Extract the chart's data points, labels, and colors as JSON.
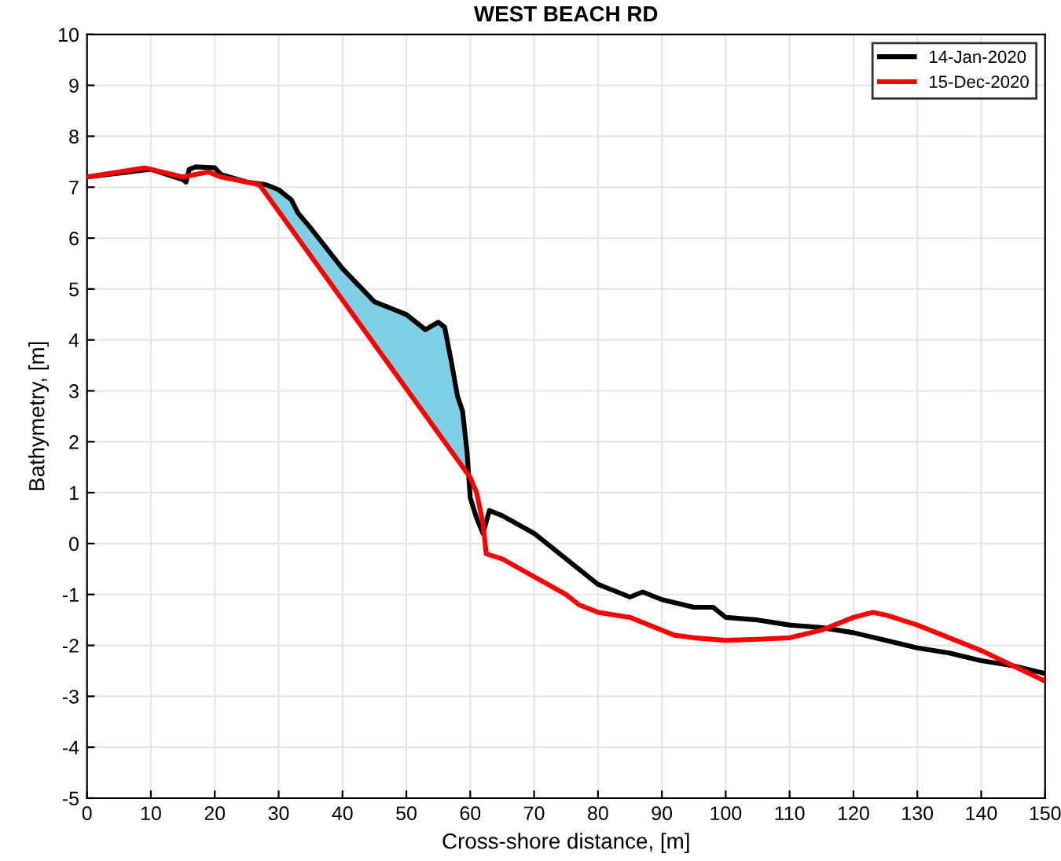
{
  "chart_data": {
    "type": "line",
    "title": "WEST BEACH RD",
    "xlabel": "Cross-shore distance, [m]",
    "ylabel": "Bathymetry, [m]",
    "xlim": [
      0,
      150
    ],
    "xticks": [
      0,
      10,
      20,
      30,
      40,
      50,
      60,
      70,
      80,
      90,
      100,
      110,
      120,
      130,
      140,
      150
    ],
    "ylim": [
      -5,
      10
    ],
    "yticks": [
      -5,
      -4,
      -3,
      -2,
      -1,
      0,
      1,
      2,
      3,
      4,
      5,
      6,
      7,
      8,
      9,
      10
    ],
    "grid": true,
    "legend": "top right",
    "series": [
      {
        "name": "14-Jan-2020",
        "color": "#000000",
        "x": [
          0,
          10,
          15,
          15.5,
          16,
          17,
          20,
          21,
          25,
          28,
          30,
          32,
          33,
          35,
          40,
          45,
          50,
          53,
          55,
          56,
          57,
          58,
          58.8,
          59.5,
          60,
          61,
          62,
          63,
          65,
          70,
          75,
          80,
          85,
          87,
          90,
          95,
          98,
          100,
          105,
          110,
          115,
          120,
          125,
          130,
          135,
          140,
          145,
          150
        ],
        "values": [
          7.2,
          7.35,
          7.15,
          7.1,
          7.35,
          7.4,
          7.38,
          7.25,
          7.1,
          7.05,
          6.95,
          6.75,
          6.5,
          6.2,
          5.4,
          4.75,
          4.5,
          4.2,
          4.35,
          4.25,
          3.6,
          2.9,
          2.6,
          1.8,
          0.9,
          0.5,
          0.2,
          0.65,
          0.55,
          0.2,
          -0.3,
          -0.8,
          -1.05,
          -0.95,
          -1.1,
          -1.25,
          -1.25,
          -1.45,
          -1.5,
          -1.6,
          -1.65,
          -1.75,
          -1.9,
          -2.05,
          -2.15,
          -2.3,
          -2.4,
          -2.55
        ],
        "lower": [
          null,
          null,
          null,
          null,
          null,
          null,
          null,
          null,
          7.1,
          6.88,
          6.53,
          6.18,
          6.0,
          5.66,
          4.79,
          3.91,
          3.04,
          2.52,
          2.17,
          2.0,
          1.82,
          1.65,
          1.51,
          1.39,
          null,
          null,
          null,
          null,
          null,
          null,
          null,
          null,
          null,
          null,
          null,
          null,
          null,
          null,
          null,
          null,
          null,
          null,
          null,
          null,
          null,
          null,
          null,
          null
        ],
        "upper": [
          null,
          null,
          null,
          null,
          null,
          null,
          null,
          null,
          7.1,
          7.05,
          6.95,
          6.75,
          6.5,
          6.2,
          5.4,
          4.75,
          4.5,
          4.2,
          4.35,
          4.25,
          3.6,
          2.9,
          2.6,
          1.8,
          null,
          null,
          null,
          null,
          null,
          null,
          null,
          null,
          null,
          null,
          null,
          null,
          null,
          null,
          null,
          null,
          null,
          null,
          null,
          null,
          null,
          null,
          null,
          null
        ]
      },
      {
        "name": "15-Dec-2020",
        "color": "#ff0000",
        "x": [
          0,
          9,
          15,
          19,
          21,
          27,
          60,
          61,
          62,
          62.5,
          65,
          70,
          75,
          77,
          80,
          85,
          88,
          92,
          95,
          100,
          105,
          110,
          115,
          120,
          123,
          125,
          130,
          135,
          140,
          145,
          150
        ],
        "values": [
          7.2,
          7.38,
          7.2,
          7.3,
          7.2,
          7.05,
          1.3,
          1.0,
          0.4,
          -0.2,
          -0.3,
          -0.65,
          -1.0,
          -1.2,
          -1.35,
          -1.45,
          -1.6,
          -1.8,
          -1.85,
          -1.9,
          -1.88,
          -1.85,
          -1.7,
          -1.45,
          -1.35,
          -1.4,
          -1.6,
          -1.85,
          -2.1,
          -2.4,
          -2.7
        ]
      }
    ]
  }
}
